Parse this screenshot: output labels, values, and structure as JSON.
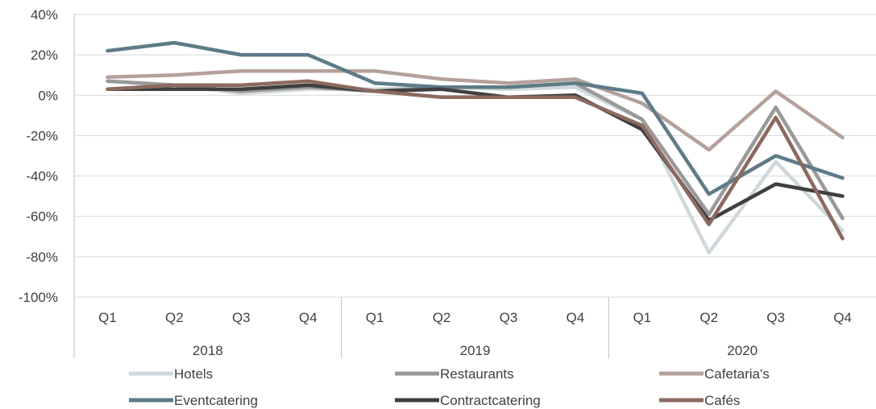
{
  "chart_data": {
    "type": "line",
    "title": "",
    "xlabel": "",
    "ylabel": "",
    "ylim": [
      -1.0,
      0.4
    ],
    "y_ticks": [
      "40%",
      "20%",
      "0%",
      "-20%",
      "-40%",
      "-60%",
      "-80%",
      "-100%"
    ],
    "y_tick_values": [
      0.4,
      0.2,
      0.0,
      -0.2,
      -0.4,
      -0.6,
      -0.8,
      -1.0
    ],
    "grid": true,
    "legend_position": "bottom",
    "categories": [
      "Q1",
      "Q2",
      "Q3",
      "Q4",
      "Q1",
      "Q2",
      "Q3",
      "Q4",
      "Q1",
      "Q2",
      "Q3",
      "Q4"
    ],
    "groups": [
      {
        "label": "2018",
        "span": 4
      },
      {
        "label": "2019",
        "span": 4
      },
      {
        "label": "2020",
        "span": 4
      }
    ],
    "series": [
      {
        "name": "Hotels",
        "color": "#cfd8dc",
        "values": [
          0.07,
          0.05,
          0.01,
          0.03,
          0.03,
          0.04,
          0.03,
          0.04,
          -0.12,
          -0.78,
          -0.33,
          -0.67
        ]
      },
      {
        "name": "Restaurants",
        "color": "#999999",
        "values": [
          0.07,
          0.05,
          0.02,
          0.04,
          0.02,
          0.04,
          0.04,
          0.06,
          -0.12,
          -0.59,
          -0.06,
          -0.61
        ]
      },
      {
        "name": "Cafetaria's",
        "color": "#b5a19b",
        "values": [
          0.09,
          0.1,
          0.12,
          0.12,
          0.12,
          0.08,
          0.06,
          0.08,
          -0.04,
          -0.27,
          0.02,
          -0.21
        ]
      },
      {
        "name": "Eventcatering",
        "color": "#5e7b87",
        "values": [
          0.22,
          0.26,
          0.2,
          0.2,
          0.06,
          0.04,
          0.04,
          0.06,
          0.01,
          -0.49,
          -0.3,
          -0.41
        ]
      },
      {
        "name": "Contractcatering",
        "color": "#3f3f3f",
        "values": [
          0.03,
          0.03,
          0.03,
          0.05,
          0.02,
          0.03,
          -0.01,
          0.0,
          -0.17,
          -0.62,
          -0.44,
          -0.5
        ]
      },
      {
        "name": "Cafés",
        "color": "#8c6a60",
        "values": [
          0.03,
          0.05,
          0.05,
          0.07,
          0.02,
          -0.01,
          -0.01,
          -0.01,
          -0.15,
          -0.64,
          -0.11,
          -0.71
        ]
      }
    ]
  }
}
